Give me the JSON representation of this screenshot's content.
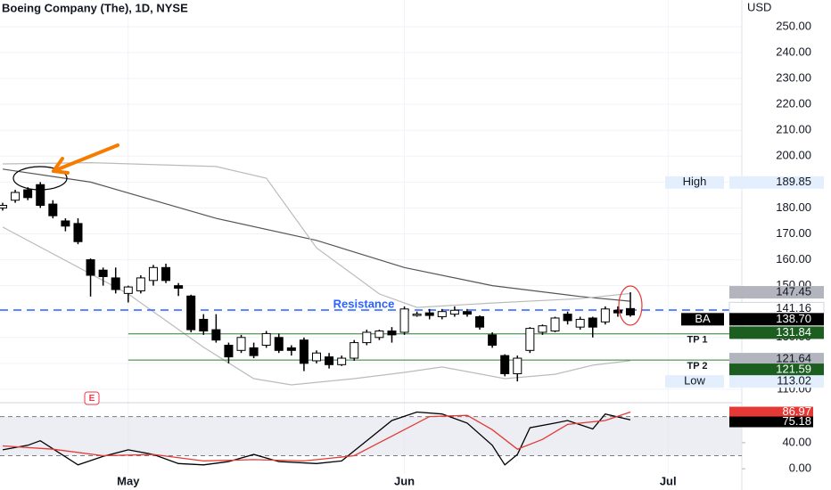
{
  "header": {
    "title": "Boeing Company (The), 1D, NYSE"
  },
  "chart_data": {
    "type": "candlestick",
    "categories": [
      null,
      null,
      null,
      null,
      null,
      null,
      null,
      null,
      null,
      null,
      "May",
      null,
      null,
      null,
      null,
      null,
      null,
      null,
      null,
      null,
      null,
      null,
      null,
      null,
      null,
      null,
      null,
      null,
      null,
      null,
      null,
      null,
      "Jun",
      null,
      null,
      null,
      null,
      null,
      null,
      null,
      null,
      null,
      null,
      null,
      null,
      null,
      null,
      null,
      null,
      null,
      null,
      null,
      null,
      "Jul",
      null,
      null,
      null,
      null,
      null,
      null
    ],
    "open": [
      180,
      183,
      187,
      189,
      181.5,
      175,
      174,
      160,
      156,
      153,
      147,
      148,
      152,
      157,
      150,
      146,
      137,
      133,
      127,
      125,
      126,
      127,
      130,
      126,
      129,
      121,
      122.5,
      119.5,
      122,
      128,
      130,
      132.5,
      132,
      138.5,
      139.5,
      138,
      139,
      140,
      138,
      131,
      123,
      116,
      125,
      132,
      132.5,
      139,
      134,
      137.5,
      136,
      140.5,
      141.16,
      null,
      null,
      null,
      null,
      null,
      null,
      null,
      null,
      null
    ],
    "high": [
      182,
      187,
      188,
      190,
      183,
      176,
      176,
      160.5,
      157,
      157,
      150,
      154,
      158,
      158.5,
      151,
      146.5,
      139,
      139,
      128,
      131,
      128,
      132.5,
      131.5,
      127,
      130,
      125,
      124,
      123,
      129,
      133,
      133,
      134,
      142,
      140,
      141,
      141,
      142,
      141,
      138.5,
      132,
      123.5,
      123,
      134,
      135,
      138,
      140,
      138,
      138,
      142,
      142,
      147.45,
      null,
      null,
      null,
      null,
      null,
      null,
      null,
      null,
      null
    ],
    "low": [
      179,
      182,
      183,
      180,
      176,
      171,
      166,
      145.8,
      150,
      147,
      143.5,
      147,
      150,
      151,
      146,
      132,
      131,
      128,
      120,
      124,
      122,
      126,
      124,
      123,
      117,
      120,
      118,
      119,
      121,
      127,
      129,
      128,
      131,
      138,
      137,
      137,
      138,
      138,
      133,
      126,
      115,
      113.02,
      124,
      131,
      132,
      135,
      133,
      130,
      135,
      138,
      138,
      null,
      null,
      null,
      null,
      null,
      null,
      null,
      null,
      null
    ],
    "close": [
      181,
      186,
      184,
      181,
      177,
      173,
      167,
      154,
      153.5,
      148.5,
      149.5,
      153,
      157,
      152,
      149,
      133,
      132.5,
      129,
      122.5,
      130,
      123,
      131.5,
      125,
      125,
      120,
      124,
      119.5,
      122,
      128,
      132,
      132.5,
      131,
      141,
      139,
      138.5,
      140,
      140.5,
      139,
      134,
      127,
      116,
      122,
      133.5,
      134.5,
      137.5,
      136.5,
      137,
      134,
      141,
      139.5,
      138.7,
      null,
      null,
      null,
      null,
      null,
      null,
      null,
      null,
      null
    ],
    "up_color": "#ffffff",
    "down_color": "#000000",
    "ylim": [
      105.5,
      260.3
    ],
    "yticks": [
      {
        "value": 110,
        "label": "110.00"
      },
      {
        "value": 120,
        "label": "120.00"
      },
      {
        "value": 130,
        "label": "130.00"
      },
      {
        "value": 140,
        "label": "140.00"
      },
      {
        "value": 150,
        "label": "150.00"
      },
      {
        "value": 160,
        "label": "160.00"
      },
      {
        "value": 170,
        "label": "170.00"
      },
      {
        "value": 180,
        "label": "180.00"
      },
      {
        "value": 190,
        "label": "190.00"
      },
      {
        "value": 200,
        "label": "200.00"
      },
      {
        "value": 210,
        "label": "210.00"
      },
      {
        "value": 220,
        "label": "220.00"
      },
      {
        "value": 230,
        "label": "230.00"
      },
      {
        "value": 240,
        "label": "240.00"
      },
      {
        "value": 250,
        "label": "250.00"
      }
    ],
    "currency": "USD",
    "grid": true,
    "overlays": [
      {
        "color": "#555555",
        "x": [
          0,
          7,
          17,
          25,
          32,
          39,
          46,
          50
        ],
        "values": [
          195,
          190,
          176,
          167.5,
          157,
          150,
          145.8,
          144
        ]
      },
      {
        "color": "#bbbbbb",
        "x": [
          0,
          7,
          17,
          21,
          25,
          30,
          33,
          39,
          46,
          50
        ],
        "values": [
          197,
          197.5,
          196,
          191.5,
          164.6,
          146.8,
          141.6,
          143.3,
          145,
          147
        ]
      },
      {
        "color": "#bbbbbb",
        "x": [
          0,
          10,
          16,
          20,
          23,
          28,
          32,
          35,
          40,
          44,
          47,
          50
        ],
        "values": [
          172.6,
          146.8,
          126.2,
          114.1,
          111.7,
          114.1,
          116.5,
          118.6,
          114.1,
          115.8,
          119.3,
          121
        ]
      }
    ],
    "levels": [
      {
        "label": "Resistance",
        "value": 140.6,
        "color": "#2962ff",
        "dashed": true
      },
      {
        "label": "TP 1",
        "value": 131.4,
        "color": "#2e7d32",
        "dashed": false
      },
      {
        "label": "TP 2",
        "value": 121.3,
        "color": "#2e7d32",
        "dashed": false
      }
    ],
    "price_tags": [
      {
        "name": "High",
        "value": 189.85,
        "label": "189.85",
        "style": "light"
      },
      {
        "value": 147.45,
        "label": "147.45",
        "style": "gray"
      },
      {
        "value": 141.16,
        "label": "141.16",
        "style": "white"
      },
      {
        "name": "BA",
        "value": 138.7,
        "label": "138.70",
        "style": "black"
      },
      {
        "value": 131.84,
        "label": "131.84",
        "style": "green"
      },
      {
        "value": 121.64,
        "label": "121.64",
        "style": "gray"
      },
      {
        "value": 121.59,
        "label": "121.59",
        "style": "green"
      },
      {
        "name": "Low",
        "value": 113.02,
        "label": "113.02",
        "style": "light"
      }
    ],
    "event": "E",
    "oscillator": {
      "type": "line",
      "ylim": [
        -8,
        100
      ],
      "yticks": [
        {
          "value": 0,
          "label": "0.00"
        },
        {
          "value": 40,
          "label": "40.00"
        }
      ],
      "band": [
        20,
        80
      ],
      "series": [
        {
          "color": "#000000",
          "x": [
            0,
            2,
            3,
            6,
            8,
            10,
            12,
            14,
            16,
            18,
            20,
            22,
            25,
            27,
            29,
            31,
            33,
            35,
            37,
            39,
            40,
            41,
            42,
            44,
            45,
            47,
            48,
            50
          ],
          "values": [
            29,
            36,
            43,
            6,
            19,
            29,
            22,
            8,
            6,
            11,
            22,
            11,
            8,
            12,
            43,
            74,
            87,
            84,
            70,
            36,
            6,
            22,
            63,
            70,
            74,
            61,
            84,
            75.18
          ]
        },
        {
          "color": "#e53935",
          "x": [
            0,
            4,
            8,
            12,
            16,
            20,
            24,
            28,
            31,
            34,
            37,
            39,
            41,
            43,
            45,
            48,
            50
          ],
          "values": [
            35,
            30,
            20,
            22,
            12,
            14,
            12,
            20,
            50,
            80,
            82,
            60,
            30,
            45,
            68,
            74,
            86.97
          ]
        }
      ]
    }
  }
}
